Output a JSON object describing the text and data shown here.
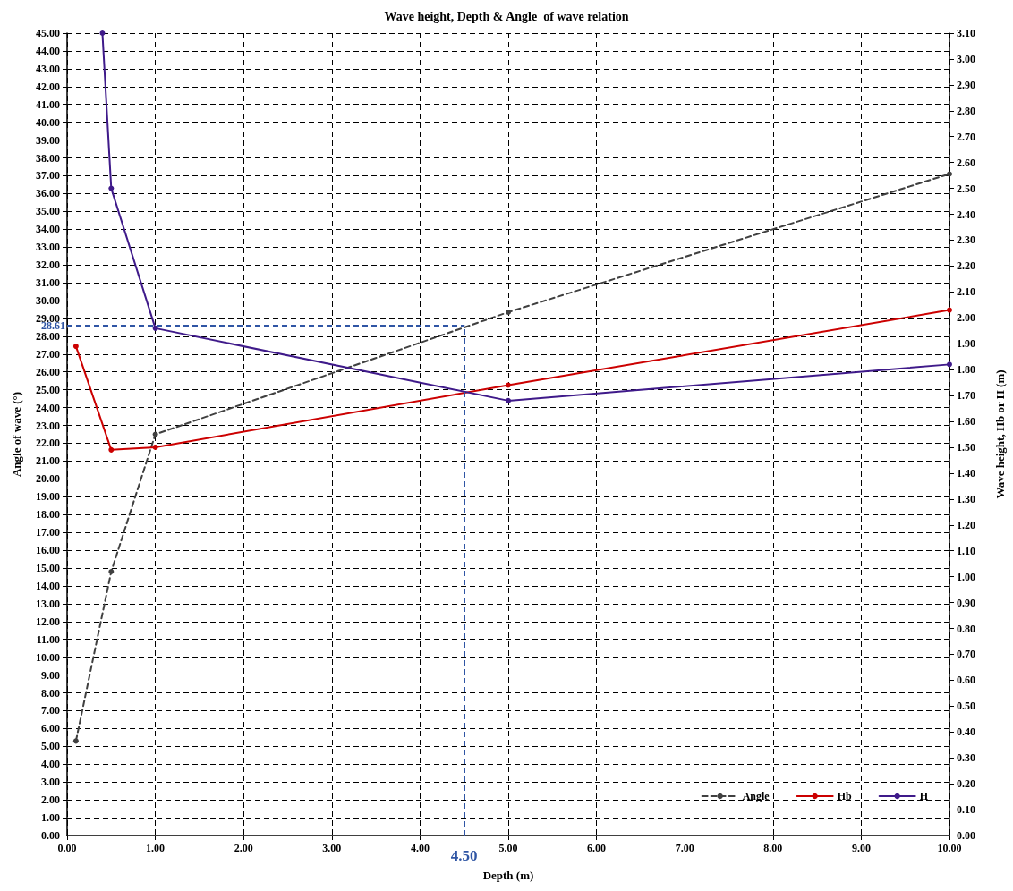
{
  "chart_data": {
    "type": "line",
    "title": "Wave height, Depth & Angle  of wave relation",
    "xlabel": "Depth (m)",
    "ylabel": "Angle of wave (°)",
    "y2label": "Wave height, Hb or H (m)",
    "series": [
      {
        "name": "Angle",
        "color": "#404040",
        "line_style": "dashed",
        "x": [
          0.1,
          0.5,
          1.0,
          5.0,
          10.0
        ],
        "values": [
          5.3,
          14.8,
          22.5,
          29.35,
          37.1
        ]
      },
      {
        "name": "Hb",
        "color": "#cc0000",
        "axis": "y2",
        "x": [
          0.1,
          0.5,
          1.0,
          5.0,
          10.0
        ],
        "values": [
          1.89,
          1.49,
          1.5,
          1.74,
          2.03
        ]
      },
      {
        "name": "H",
        "color": "#3f1a8a",
        "axis": "y2",
        "x": [
          0.4,
          0.5,
          1.0,
          5.0,
          10.0
        ],
        "values": [
          3.1,
          2.5,
          1.96,
          1.68,
          1.82
        ]
      }
    ],
    "marker": "circle",
    "line_style": "solid",
    "grid": true,
    "legend": "bottom right",
    "ref_lines": [
      {
        "axis": "y",
        "value": 28.61,
        "label": "28.61",
        "color": "#2f55a4",
        "line_style": "dashed"
      },
      {
        "axis": "x",
        "value": 4.5,
        "label": "4.50",
        "color": "#2f55a4",
        "line_style": "dashed"
      }
    ],
    "xlim": [
      0,
      10
    ],
    "xticks": [
      {
        "value": 0,
        "label": "0.00"
      },
      {
        "value": 1,
        "label": "1.00"
      },
      {
        "value": 2,
        "label": "2.00"
      },
      {
        "value": 3,
        "label": "3.00"
      },
      {
        "value": 4,
        "label": "4.00"
      },
      {
        "value": 5,
        "label": "5.00"
      },
      {
        "value": 6,
        "label": "6.00"
      },
      {
        "value": 7,
        "label": "7.00"
      },
      {
        "value": 8,
        "label": "8.00"
      },
      {
        "value": 9,
        "label": "9.00"
      },
      {
        "value": 10,
        "label": "10.00"
      }
    ],
    "ylim": [
      0,
      45
    ],
    "yticks": [
      {
        "value": 0,
        "label": "0.00"
      },
      {
        "value": 1,
        "label": "1.00"
      },
      {
        "value": 2,
        "label": "2.00"
      },
      {
        "value": 3,
        "label": "3.00"
      },
      {
        "value": 4,
        "label": "4.00"
      },
      {
        "value": 5,
        "label": "5.00"
      },
      {
        "value": 6,
        "label": "6.00"
      },
      {
        "value": 7,
        "label": "7.00"
      },
      {
        "value": 8,
        "label": "8.00"
      },
      {
        "value": 9,
        "label": "9.00"
      },
      {
        "value": 10,
        "label": "10.00"
      },
      {
        "value": 11,
        "label": "11.00"
      },
      {
        "value": 12,
        "label": "12.00"
      },
      {
        "value": 13,
        "label": "13.00"
      },
      {
        "value": 14,
        "label": "14.00"
      },
      {
        "value": 15,
        "label": "15.00"
      },
      {
        "value": 16,
        "label": "16.00"
      },
      {
        "value": 17,
        "label": "17.00"
      },
      {
        "value": 18,
        "label": "18.00"
      },
      {
        "value": 19,
        "label": "19.00"
      },
      {
        "value": 20,
        "label": "20.00"
      },
      {
        "value": 21,
        "label": "21.00"
      },
      {
        "value": 22,
        "label": "22.00"
      },
      {
        "value": 23,
        "label": "23.00"
      },
      {
        "value": 24,
        "label": "24.00"
      },
      {
        "value": 25,
        "label": "25.00"
      },
      {
        "value": 26,
        "label": "26.00"
      },
      {
        "value": 27,
        "label": "27.00"
      },
      {
        "value": 28,
        "label": "28.00"
      },
      {
        "value": 29,
        "label": "29.00"
      },
      {
        "value": 30,
        "label": "30.00"
      },
      {
        "value": 31,
        "label": "31.00"
      },
      {
        "value": 32,
        "label": "32.00"
      },
      {
        "value": 33,
        "label": "33.00"
      },
      {
        "value": 34,
        "label": "34.00"
      },
      {
        "value": 35,
        "label": "35.00"
      },
      {
        "value": 36,
        "label": "36.00"
      },
      {
        "value": 37,
        "label": "37.00"
      },
      {
        "value": 38,
        "label": "38.00"
      },
      {
        "value": 39,
        "label": "39.00"
      },
      {
        "value": 40,
        "label": "40.00"
      },
      {
        "value": 41,
        "label": "41.00"
      },
      {
        "value": 42,
        "label": "42.00"
      },
      {
        "value": 43,
        "label": "43.00"
      },
      {
        "value": 44,
        "label": "44.00"
      },
      {
        "value": 45,
        "label": "45.00"
      }
    ],
    "y2lim": [
      0,
      3.1
    ],
    "y2ticks": [
      {
        "value": 0,
        "label": "0.00"
      },
      {
        "value": 0.1,
        "label": "0.10"
      },
      {
        "value": 0.2,
        "label": "0.20"
      },
      {
        "value": 0.3,
        "label": "0.30"
      },
      {
        "value": 0.4,
        "label": "0.40"
      },
      {
        "value": 0.5,
        "label": "0.50"
      },
      {
        "value": 0.6,
        "label": "0.60"
      },
      {
        "value": 0.7,
        "label": "0.70"
      },
      {
        "value": 0.8,
        "label": "0.80"
      },
      {
        "value": 0.9,
        "label": "0.90"
      },
      {
        "value": 1.0,
        "label": "1.00"
      },
      {
        "value": 1.1,
        "label": "1.10"
      },
      {
        "value": 1.2,
        "label": "1.20"
      },
      {
        "value": 1.3,
        "label": "1.30"
      },
      {
        "value": 1.4,
        "label": "1.40"
      },
      {
        "value": 1.5,
        "label": "1.50"
      },
      {
        "value": 1.6,
        "label": "1.60"
      },
      {
        "value": 1.7,
        "label": "1.70"
      },
      {
        "value": 1.8,
        "label": "1.80"
      },
      {
        "value": 1.9,
        "label": "1.90"
      },
      {
        "value": 2.0,
        "label": "2.00"
      },
      {
        "value": 2.1,
        "label": "2.10"
      },
      {
        "value": 2.2,
        "label": "2.20"
      },
      {
        "value": 2.3,
        "label": "2.30"
      },
      {
        "value": 2.4,
        "label": "2.40"
      },
      {
        "value": 2.5,
        "label": "2.50"
      },
      {
        "value": 2.6,
        "label": "2.60"
      },
      {
        "value": 2.7,
        "label": "2.70"
      },
      {
        "value": 2.8,
        "label": "2.80"
      },
      {
        "value": 2.9,
        "label": "2.90"
      },
      {
        "value": 3.0,
        "label": "3.00"
      },
      {
        "value": 3.1,
        "label": "3.10"
      }
    ]
  }
}
